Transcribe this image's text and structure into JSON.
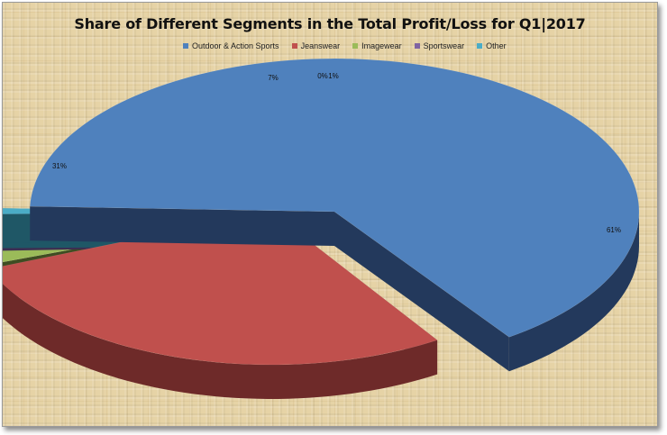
{
  "chart_data": {
    "type": "pie",
    "title": "Share of Different Segments in the Total Profit/Loss for Q1|2017",
    "categories": [
      "Outdoor & Action Sports",
      "Jeanswear",
      "Imagewear",
      "Sportswear",
      "Other"
    ],
    "values": [
      61,
      31,
      7,
      0,
      1
    ],
    "data_labels": [
      "61%",
      "31%",
      "7%",
      "0%",
      "1%"
    ],
    "colors": [
      "#4f81bd",
      "#c0504d",
      "#9bbb59",
      "#8064a2",
      "#4bacc6"
    ],
    "side_colors": [
      "#23395c",
      "#6e2a29",
      "#3f4d22",
      "#3d2f52",
      "#1f5766"
    ],
    "exploded": true,
    "style": "3d",
    "legend_position": "top"
  }
}
